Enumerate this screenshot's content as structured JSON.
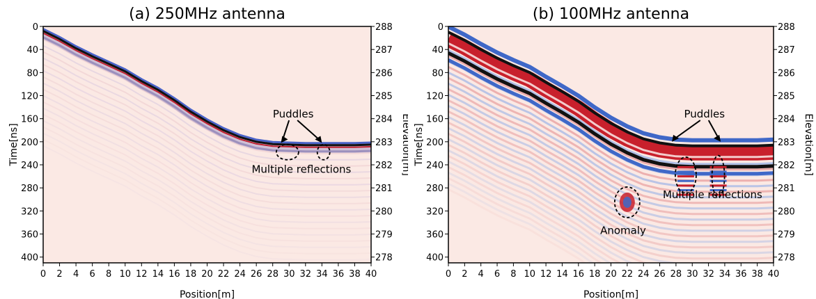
{
  "chart_data": [
    {
      "type": "heatmap",
      "title": "(a) 250MHz antenna",
      "xlabel": "Position[m]",
      "ylabel": "Time[ns]",
      "ylabel_right": "Elevation[m]",
      "xlim": [
        0,
        40
      ],
      "ylim": [
        0,
        410
      ],
      "x_ticks": [
        "0",
        "2",
        "4",
        "6",
        "8",
        "10",
        "12",
        "14",
        "16",
        "18",
        "20",
        "22",
        "24",
        "26",
        "28",
        "30",
        "32",
        "34",
        "36",
        "38",
        "40"
      ],
      "y_ticks": [
        "0",
        "40",
        "80",
        "120",
        "160",
        "200",
        "240",
        "280",
        "320",
        "360",
        "400"
      ],
      "right_ticks": [
        "288",
        "287",
        "286",
        "285",
        "284",
        "283",
        "282",
        "281",
        "280",
        "279",
        "278"
      ],
      "surface_reflection": {
        "position_m": [
          0,
          2,
          4,
          6,
          8,
          10,
          12,
          14,
          16,
          18,
          20,
          22,
          24,
          26,
          28,
          30,
          32,
          34,
          36,
          38,
          40
        ],
        "time_ns": [
          8,
          22,
          38,
          52,
          65,
          78,
          95,
          110,
          128,
          148,
          165,
          180,
          192,
          200,
          204,
          205,
          206,
          206,
          206,
          206,
          205
        ]
      },
      "annotations": [
        {
          "text": "Puddles",
          "x": 30.5,
          "y": 158
        },
        {
          "text": "Multiple reflections",
          "x": 31.5,
          "y": 254
        }
      ]
    },
    {
      "type": "heatmap",
      "title": "(b) 100MHz antenna",
      "xlabel": "Position[m]",
      "ylabel": "Time[ns]",
      "ylabel_right": "Elevation[m]",
      "xlim": [
        0,
        40
      ],
      "ylim": [
        0,
        410
      ],
      "x_ticks": [
        "0",
        "2",
        "4",
        "6",
        "8",
        "10",
        "12",
        "14",
        "16",
        "18",
        "20",
        "22",
        "24",
        "26",
        "28",
        "30",
        "32",
        "34",
        "36",
        "38",
        "40"
      ],
      "y_ticks": [
        "0",
        "40",
        "80",
        "120",
        "160",
        "200",
        "240",
        "280",
        "320",
        "360",
        "400"
      ],
      "right_ticks": [
        "288",
        "287",
        "286",
        "285",
        "284",
        "283",
        "282",
        "281",
        "280",
        "279",
        "278"
      ],
      "surface_reflection": {
        "position_m": [
          0,
          2,
          4,
          6,
          8,
          10,
          12,
          14,
          16,
          18,
          20,
          22,
          24,
          26,
          28,
          30,
          32,
          34,
          36,
          38,
          40
        ],
        "time_ns": [
          10,
          24,
          40,
          55,
          68,
          80,
          97,
          113,
          130,
          150,
          168,
          183,
          195,
          202,
          206,
          207,
          207,
          207,
          207,
          207,
          206
        ]
      },
      "annotations": [
        {
          "text": "Puddles",
          "x": 31.5,
          "y": 158
        },
        {
          "text": "Multiple reflections",
          "x": 32.5,
          "y": 298
        },
        {
          "text": "Anomaly",
          "x": 21.5,
          "y": 360
        }
      ]
    }
  ]
}
